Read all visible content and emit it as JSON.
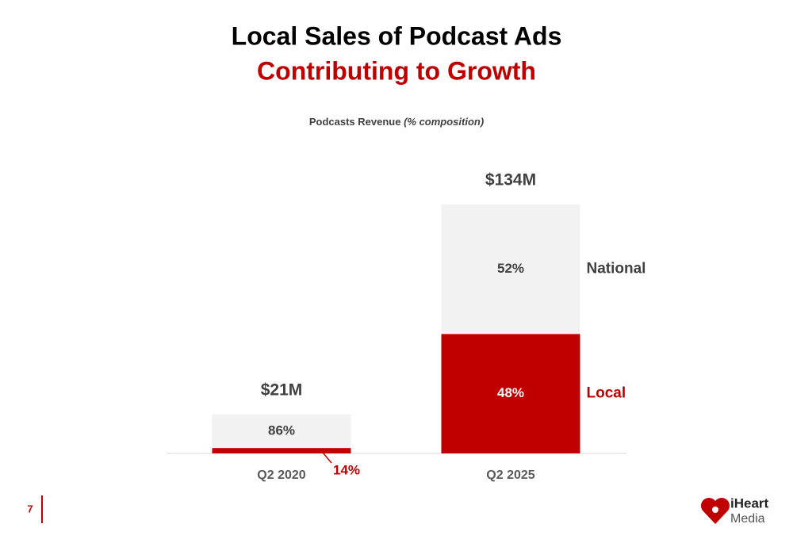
{
  "chart_data": {
    "type": "stacked_bar",
    "title": "Local Sales of Podcast Ads",
    "subtitle": "Contributing to Growth",
    "y_label": "Podcasts Revenue",
    "y_label_note": "(% composition)",
    "categories": [
      "Q2 2020",
      "Q2 2025"
    ],
    "totals": {
      "values": [
        21,
        134
      ],
      "value_labels": [
        "$21M",
        "$134M"
      ]
    },
    "series": [
      {
        "name": "Local",
        "color": "#c00000",
        "label_color": "#c00000",
        "values": [
          14,
          48
        ],
        "value_labels": [
          "14%",
          "48%"
        ]
      },
      {
        "name": "National",
        "color": "#f2f2f2",
        "label_color": "#404040",
        "values": [
          86,
          52
        ],
        "value_labels": [
          "86%",
          "52%"
        ]
      }
    ]
  },
  "page_number": "7",
  "logo": {
    "line1": "iHeart",
    "line2": "Media"
  }
}
